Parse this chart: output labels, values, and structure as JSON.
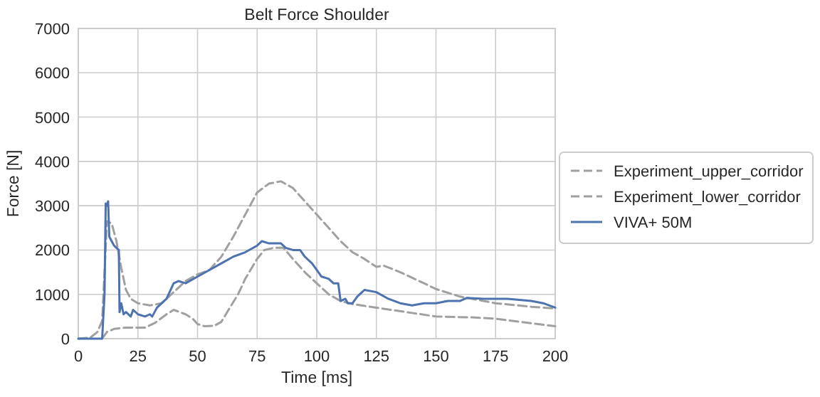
{
  "chart_data": {
    "type": "line",
    "title": "Belt Force Shoulder",
    "xlabel": "Time [ms]",
    "ylabel": "Force [N]",
    "xlim": [
      0,
      200
    ],
    "ylim": [
      0,
      7000
    ],
    "xticks": [
      0,
      25,
      50,
      75,
      100,
      125,
      150,
      175,
      200
    ],
    "yticks": [
      0,
      1000,
      2000,
      3000,
      4000,
      5000,
      6000,
      7000
    ],
    "grid": true,
    "legend": "right",
    "marker": "none",
    "series": [
      {
        "name": "Experiment_upper_corridor",
        "color": "#a0a0a0",
        "line_style": "dashed",
        "x": [
          0,
          5,
          8,
          10,
          11,
          12,
          14,
          16,
          18,
          20,
          22,
          25,
          30,
          35,
          40,
          45,
          50,
          55,
          60,
          65,
          70,
          75,
          80,
          85,
          90,
          95,
          100,
          105,
          110,
          115,
          120,
          125,
          128,
          135,
          145,
          150,
          160,
          175,
          190,
          200
        ],
        "values": [
          0,
          20,
          150,
          400,
          1500,
          2650,
          2600,
          2200,
          1600,
          1100,
          900,
          800,
          750,
          800,
          1050,
          1300,
          1450,
          1550,
          1850,
          2300,
          2800,
          3300,
          3500,
          3550,
          3400,
          3100,
          2800,
          2500,
          2200,
          1950,
          1800,
          1620,
          1650,
          1500,
          1250,
          1120,
          950,
          800,
          720,
          680
        ]
      },
      {
        "name": "Experiment_lower_corridor",
        "color": "#a0a0a0",
        "line_style": "dashed",
        "x": [
          10,
          12,
          15,
          20,
          25,
          28,
          32,
          37,
          40,
          45,
          48,
          50,
          53,
          57,
          60,
          63,
          67,
          70,
          75,
          78,
          82,
          86,
          90,
          95,
          100,
          105,
          110,
          115,
          125,
          140,
          150,
          165,
          175,
          185,
          200
        ],
        "values": [
          0,
          150,
          220,
          250,
          250,
          250,
          350,
          550,
          650,
          550,
          450,
          330,
          280,
          290,
          380,
          650,
          1000,
          1350,
          1800,
          2000,
          2050,
          2050,
          1800,
          1500,
          1250,
          1000,
          850,
          780,
          700,
          580,
          500,
          480,
          450,
          380,
          280
        ]
      },
      {
        "name": "VIVA+ 50M",
        "color": "#4c72b0",
        "line_style": "solid",
        "x": [
          0,
          10,
          11,
          11.5,
          12,
          12.5,
          13,
          14,
          15,
          16,
          17,
          17.3,
          18,
          19,
          20,
          22,
          23,
          25,
          28,
          30,
          31,
          33,
          37,
          40,
          42,
          45,
          50,
          55,
          60,
          65,
          70,
          75,
          77,
          80,
          85,
          87,
          90,
          93,
          95,
          98,
          100,
          102,
          105,
          107,
          109,
          110,
          112,
          113,
          115,
          117,
          120,
          125,
          130,
          135,
          140,
          145,
          150,
          155,
          160,
          163,
          170,
          180,
          190,
          195,
          200
        ],
        "values": [
          0,
          0,
          1000,
          3050,
          3000,
          3100,
          2300,
          2200,
          2100,
          2050,
          2000,
          600,
          800,
          550,
          600,
          500,
          650,
          550,
          500,
          550,
          500,
          700,
          900,
          1250,
          1300,
          1250,
          1400,
          1550,
          1700,
          1850,
          1950,
          2100,
          2200,
          2150,
          2150,
          2050,
          2000,
          2000,
          1850,
          1700,
          1550,
          1400,
          1350,
          1250,
          1250,
          850,
          900,
          800,
          800,
          950,
          1100,
          1050,
          900,
          800,
          750,
          800,
          800,
          850,
          850,
          920,
          900,
          900,
          850,
          800,
          700
        ]
      }
    ]
  }
}
